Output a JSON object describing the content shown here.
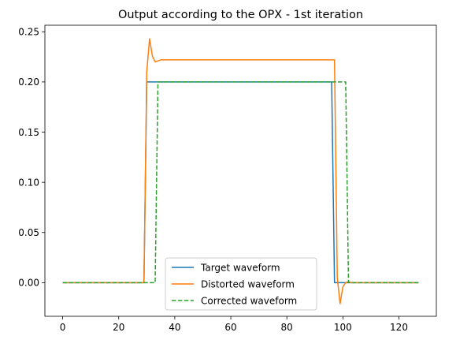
{
  "chart_data": {
    "type": "line",
    "title": "Output according to the OPX - 1st iteration",
    "xlabel": "",
    "ylabel": "",
    "xlim": [
      -6.35,
      133.35
    ],
    "ylim": [
      -0.0335,
      0.2565
    ],
    "x_ticks": [
      0,
      20,
      40,
      60,
      80,
      100,
      120
    ],
    "y_ticks": [
      0.0,
      0.05,
      0.1,
      0.15,
      0.2,
      0.25
    ],
    "x_tick_labels": [
      "0",
      "20",
      "40",
      "60",
      "80",
      "100",
      "120"
    ],
    "y_tick_labels": [
      "0.00",
      "0.05",
      "0.10",
      "0.15",
      "0.20",
      "0.25"
    ],
    "grid": false,
    "legend_position": "lower-center",
    "series": [
      {
        "name": "Target waveform",
        "color": "#1f77b4",
        "style": "solid",
        "points": [
          [
            0,
            0.0
          ],
          [
            29,
            0.0
          ],
          [
            30,
            0.2
          ],
          [
            96,
            0.2
          ],
          [
            97,
            0.0
          ],
          [
            127,
            0.0
          ]
        ]
      },
      {
        "name": "Distorted waveform",
        "color": "#ff7f0e",
        "style": "solid",
        "points": [
          [
            0,
            0.0
          ],
          [
            29,
            0.0
          ],
          [
            30,
            0.21
          ],
          [
            31,
            0.243
          ],
          [
            32,
            0.226
          ],
          [
            33,
            0.22
          ],
          [
            34,
            0.221
          ],
          [
            35,
            0.222
          ],
          [
            96,
            0.222
          ],
          [
            97,
            0.222
          ],
          [
            98,
            0.005
          ],
          [
            99,
            -0.021
          ],
          [
            100,
            -0.004
          ],
          [
            101,
            0.0
          ],
          [
            102,
            0.001
          ],
          [
            103,
            0.0
          ],
          [
            127,
            0.0
          ]
        ]
      },
      {
        "name": "Corrected waveform",
        "color": "#2ca02c",
        "style": "dashed",
        "points": [
          [
            0,
            0.0
          ],
          [
            33,
            0.0
          ],
          [
            34,
            0.2
          ],
          [
            101,
            0.2
          ],
          [
            102,
            0.0
          ],
          [
            127,
            0.0
          ]
        ]
      }
    ]
  }
}
